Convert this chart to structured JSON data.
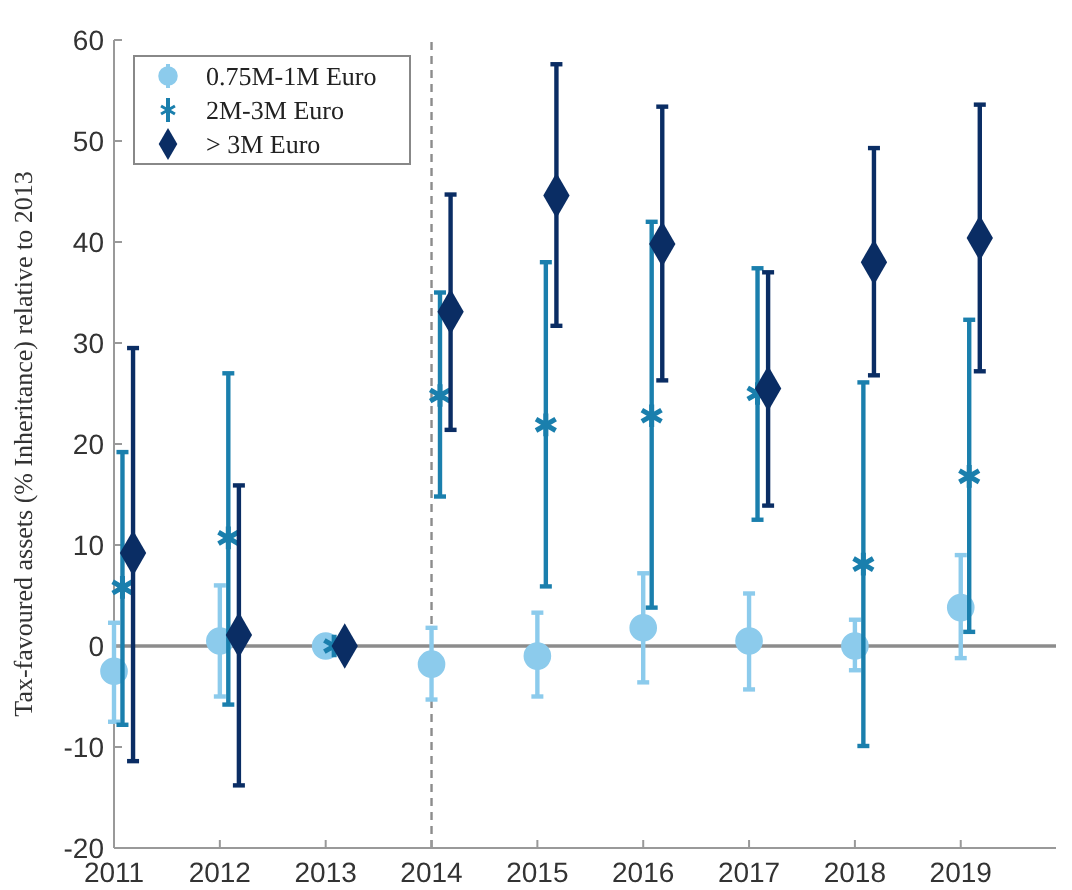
{
  "chart_data": {
    "type": "scatter",
    "ylabel": "Tax-favoured assets (% Inheritance) relative to 2013",
    "xlim": [
      2011,
      2019.9
    ],
    "xticks": [
      2011,
      2012,
      2013,
      2014,
      2015,
      2016,
      2017,
      2018,
      2019
    ],
    "ylim": [
      -20,
      60
    ],
    "yticks": [
      -20,
      -10,
      0,
      10,
      20,
      30,
      40,
      50,
      60
    ],
    "grid": false,
    "legend": "top left",
    "ref_lines": [
      {
        "axis": "x",
        "value": 2014,
        "color": "#8c8c8c",
        "line_style": "dashed"
      },
      {
        "axis": "y",
        "value": 0,
        "color": "#8c8c8c",
        "line_style": "solid"
      }
    ],
    "series": [
      {
        "name": "0.75M-1M Euro",
        "color": "#8ccbec",
        "marker": "circle",
        "x": [
          2011,
          2012,
          2013,
          2014,
          2015,
          2016,
          2017,
          2018,
          2019
        ],
        "values": [
          -2.5,
          0.5,
          0,
          -1.8,
          -1,
          1.8,
          0.5,
          0,
          3.8
        ],
        "errors": [
          [
            -7.5,
            2.3
          ],
          [
            -5,
            6
          ],
          null,
          [
            -5.3,
            1.8
          ],
          [
            -5,
            3.3
          ],
          [
            -3.6,
            7.2
          ],
          [
            -4.3,
            5.2
          ],
          [
            -2.4,
            2.6
          ],
          [
            -1.2,
            9
          ]
        ]
      },
      {
        "name": "2M-3M Euro",
        "color": "#1a7fad",
        "marker": "cross",
        "x": [
          2011.08,
          2012.08,
          2013.08,
          2014.08,
          2015.08,
          2016.08,
          2017.08,
          2018.08,
          2019.08
        ],
        "values": [
          5.8,
          10.7,
          0,
          24.8,
          21.9,
          22.8,
          25,
          8.1,
          16.8
        ],
        "errors": [
          [
            -7.8,
            19.2
          ],
          [
            -5.8,
            27
          ],
          null,
          [
            14.8,
            35
          ],
          [
            5.9,
            38
          ],
          [
            3.8,
            42
          ],
          [
            12.5,
            37.4
          ],
          [
            -9.9,
            26.1
          ],
          [
            1.4,
            32.3
          ]
        ]
      },
      {
        "name": "> 3M Euro",
        "color": "#0a2d64",
        "marker": "diamond",
        "x": [
          2011.18,
          2012.18,
          2013.18,
          2014.18,
          2015.18,
          2016.18,
          2017.18,
          2018.18,
          2019.18
        ],
        "values": [
          9.2,
          1.1,
          0,
          33.1,
          44.6,
          39.8,
          25.5,
          38,
          40.4
        ],
        "errors": [
          [
            -11.4,
            29.5
          ],
          [
            -13.8,
            15.9
          ],
          null,
          [
            21.4,
            44.7
          ],
          [
            31.7,
            57.6
          ],
          [
            26.3,
            53.4
          ],
          [
            13.9,
            37
          ],
          [
            26.8,
            49.3
          ],
          [
            27.2,
            53.6
          ]
        ]
      }
    ]
  }
}
